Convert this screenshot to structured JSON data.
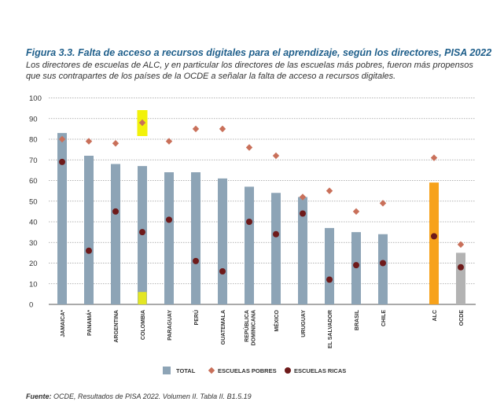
{
  "title": "Figura 3.3. Falta de acceso a recursos digitales para el aprendizaje, según los  directores, PISA 2022",
  "subtitle": "Los directores de escuelas de ALC, y en particular los directores de las escuelas más pobres, fueron más propensos que sus contrapartes de los países de la OCDE a señalar la falta de acceso a recursos digitales.",
  "source_label": "Fuente:",
  "source_text": " OCDE, Resultados de PISA 2022. Volumen II. Tabla II. B1.5.19",
  "colors": {
    "total": "#8da4b6",
    "alc": "#f7a21b",
    "ocde": "#b3b3b3",
    "pobres": "#c9705a",
    "ricas": "#6e1a1a",
    "highlight": "#f2f20a",
    "title": "#1f5f8b"
  },
  "chart_data": {
    "type": "bar",
    "ylim": [
      0,
      100
    ],
    "yticks": [
      0,
      10,
      20,
      30,
      40,
      50,
      60,
      70,
      80,
      90,
      100
    ],
    "grid": true,
    "legend_position": "bottom",
    "categories": [
      "JAMAICA*",
      "PANAMÁ*",
      "ARGENTINA",
      "COLOMBIA",
      "PARAGUAY",
      "PERÚ",
      "GUATEMALA",
      "REPÚBLICA DOMINICANA",
      "MÉXICO",
      "URUGUAY",
      "EL SALVADOR",
      "BRASIL",
      "CHILE",
      "ALC",
      "OCDE"
    ],
    "highlighted_category": "COLOMBIA",
    "series": [
      {
        "name": "TOTAL",
        "kind": "bar",
        "values": [
          83,
          72,
          68,
          67,
          64,
          64,
          61,
          57,
          54,
          52,
          37,
          35,
          34,
          59,
          25
        ]
      },
      {
        "name": "ESCUELAS POBRES",
        "kind": "diamond",
        "values": [
          80,
          79,
          78,
          88,
          79,
          85,
          85,
          76,
          72,
          52,
          55,
          45,
          49,
          71,
          29
        ]
      },
      {
        "name": "ESCUELAS RICAS",
        "kind": "dot",
        "values": [
          69,
          26,
          45,
          35,
          41,
          21,
          16,
          40,
          34,
          44,
          12,
          19,
          20,
          33,
          18
        ]
      }
    ]
  }
}
